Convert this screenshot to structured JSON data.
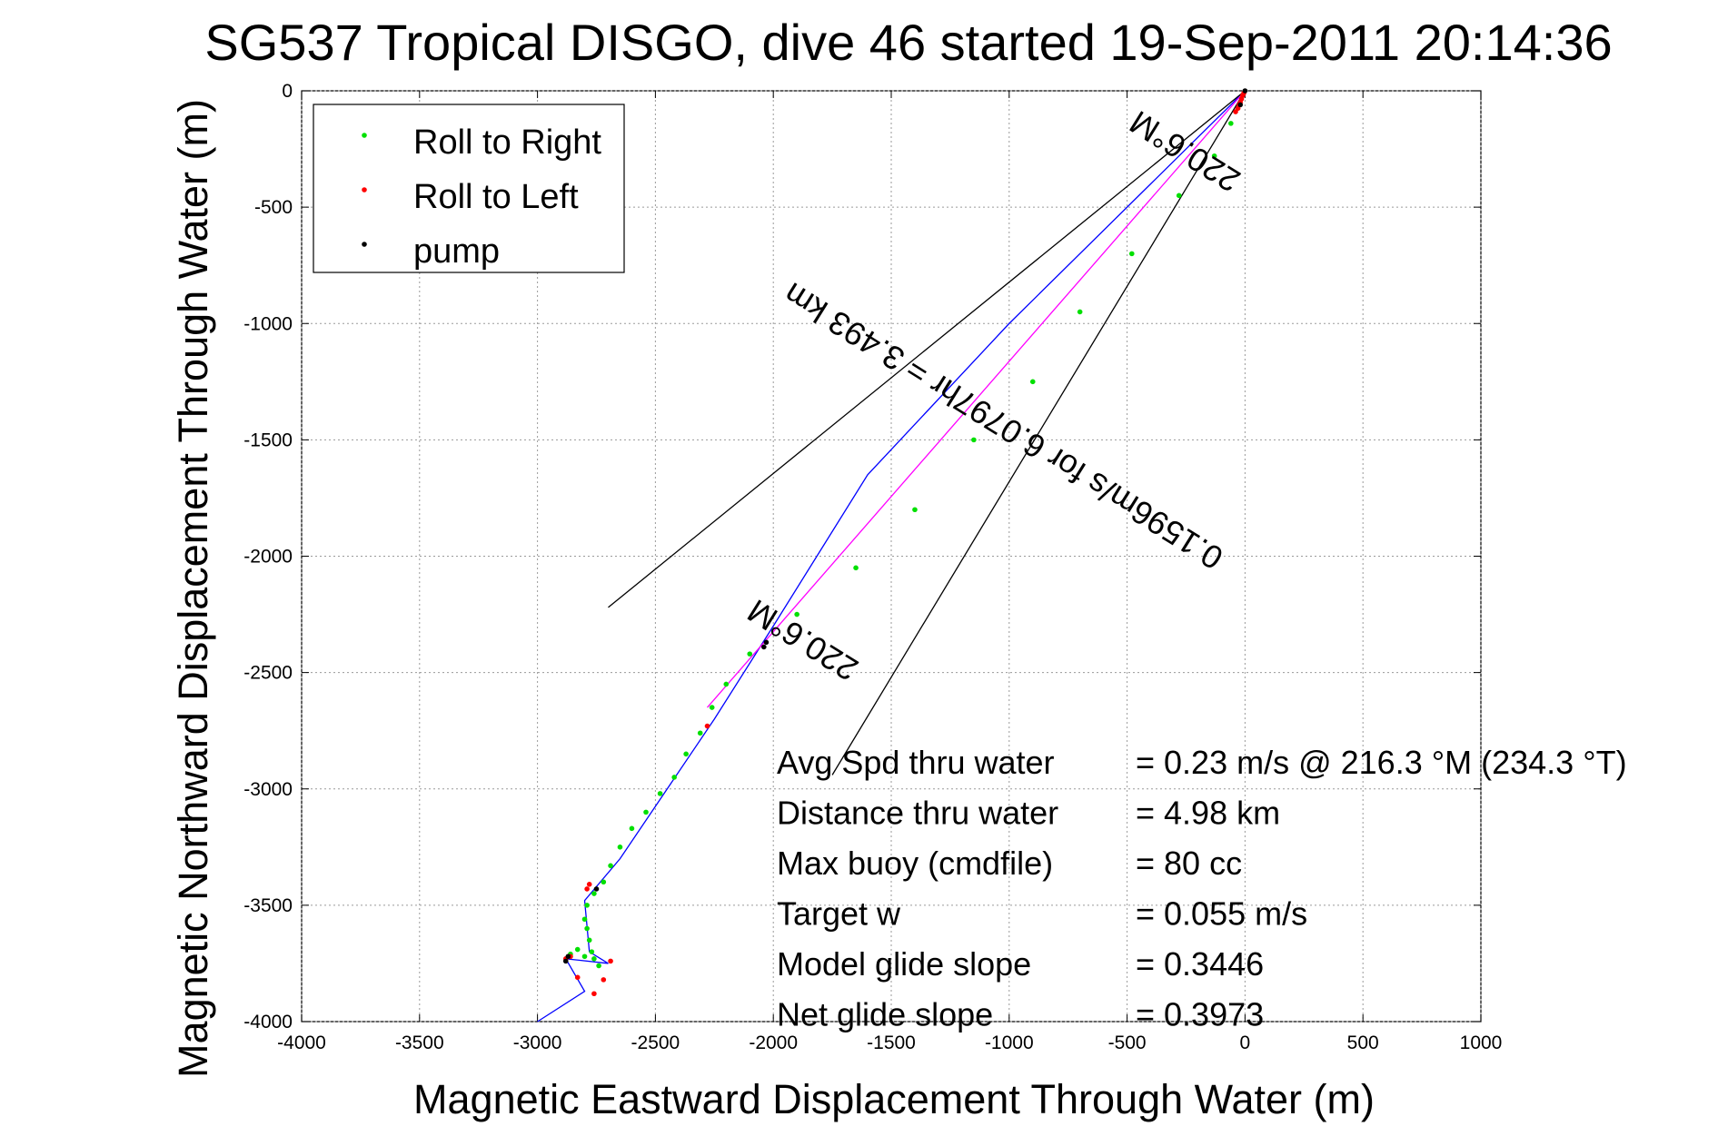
{
  "chart_data": {
    "type": "scatter",
    "title": "SG537 Tropical DISGO, dive 46 started 19-Sep-2011 20:14:36",
    "xlabel": "Magnetic Eastward Displacement Through Water (m)",
    "ylabel": "Magnetic Northward Displacement Through Water (m)",
    "xlim": [
      -4000,
      1000
    ],
    "ylim": [
      -4000,
      0
    ],
    "xticks": [
      -4000,
      -3500,
      -3000,
      -2500,
      -2000,
      -1500,
      -1000,
      -500,
      0,
      500,
      1000
    ],
    "yticks": [
      0,
      -500,
      -1000,
      -1500,
      -2000,
      -2500,
      -3000,
      -3500,
      -4000
    ],
    "grid": true,
    "legend": {
      "placement": "top-left",
      "entries": [
        {
          "label": "Roll to Right",
          "color": "#00e000"
        },
        {
          "label": "Roll to Left",
          "color": "#ff0000"
        },
        {
          "label": "pump",
          "color": "#000000"
        }
      ]
    },
    "series": [
      {
        "name": "Roll to Right",
        "color": "#00e000",
        "x": [
          -60,
          -130,
          -280,
          -480,
          -700,
          -900,
          -1150,
          -1400,
          -1650,
          -1900,
          -2100,
          -2200,
          -2260,
          -2310,
          -2370,
          -2420,
          -2480,
          -2540,
          -2600,
          -2650,
          -2690,
          -2720,
          -2760,
          -2790,
          -2800,
          -2790,
          -2780,
          -2770,
          -2760,
          -2740,
          -2800,
          -2830,
          -2860
        ],
        "y": [
          -140,
          -280,
          -450,
          -700,
          -950,
          -1250,
          -1500,
          -1800,
          -2050,
          -2250,
          -2420,
          -2550,
          -2650,
          -2760,
          -2850,
          -2950,
          -3020,
          -3100,
          -3170,
          -3250,
          -3330,
          -3400,
          -3450,
          -3500,
          -3560,
          -3600,
          -3650,
          -3700,
          -3730,
          -3760,
          -3720,
          -3690,
          -3710
        ]
      },
      {
        "name": "Roll to Left",
        "color": "#ff0000",
        "x": [
          -5,
          -10,
          -15,
          -20,
          -25,
          -30,
          -40,
          -2280,
          -2780,
          -2790,
          -2860,
          -2880,
          -2830,
          -2760,
          -2720,
          -2690
        ],
        "y": [
          -10,
          -20,
          -35,
          -50,
          -60,
          -75,
          -90,
          -2730,
          -3410,
          -3430,
          -3720,
          -3730,
          -3810,
          -3880,
          -3820,
          -3740
        ]
      },
      {
        "name": "pump",
        "color": "#000000",
        "x": [
          0,
          -20,
          -2030,
          -2040,
          -2750,
          -2880,
          -2870
        ],
        "y": [
          0,
          -60,
          -2370,
          -2390,
          -3430,
          -3740,
          -3720
        ]
      }
    ],
    "lines": [
      {
        "name": "track",
        "color": "#0000ff",
        "x": [
          0,
          -400,
          -1000,
          -1600,
          -2000,
          -2250,
          -2450,
          -2650,
          -2800,
          -2780,
          -2700,
          -2880,
          -2800,
          -3000
        ],
        "y": [
          0,
          -400,
          -1000,
          -1650,
          -2300,
          -2700,
          -3000,
          -3300,
          -3480,
          -3700,
          -3750,
          -3730,
          -3870,
          -4000
        ]
      },
      {
        "name": "model",
        "color": "#ff00ff",
        "x": [
          0,
          -2280
        ],
        "y": [
          0,
          -2650
        ]
      },
      {
        "name": "ray1",
        "color": "#000000",
        "x": [
          0,
          -2700
        ],
        "y": [
          0,
          -2220
        ]
      },
      {
        "name": "ray2",
        "color": "#000000",
        "x": [
          0,
          -1750
        ],
        "y": [
          0,
          -2940
        ]
      }
    ],
    "annotations": [
      {
        "text": "220.6°M",
        "x": -230,
        "y": -220,
        "rotation": 212
      },
      {
        "text": "0.1596m/s for 6.0797hr = 3.493 km",
        "x": -1000,
        "y": -1400,
        "rotation": 212
      },
      {
        "text": "220.6°M",
        "x": -1850,
        "y": -2320,
        "rotation": 212
      }
    ],
    "stats": [
      {
        "label": "Avg Spd thru water",
        "value": "=  0.23 m/s @ 216.3 °M (234.3 °T)"
      },
      {
        "label": "Distance thru water",
        "value": "=  4.98 km"
      },
      {
        "label": "Max buoy (cmdfile)",
        "value": "= 80 cc"
      },
      {
        "label": "Target w",
        "value": "= 0.055 m/s"
      },
      {
        "label": "Model glide slope",
        "value": "= 0.3446"
      },
      {
        "label": "Net glide slope",
        "value": "= 0.3973"
      }
    ]
  }
}
